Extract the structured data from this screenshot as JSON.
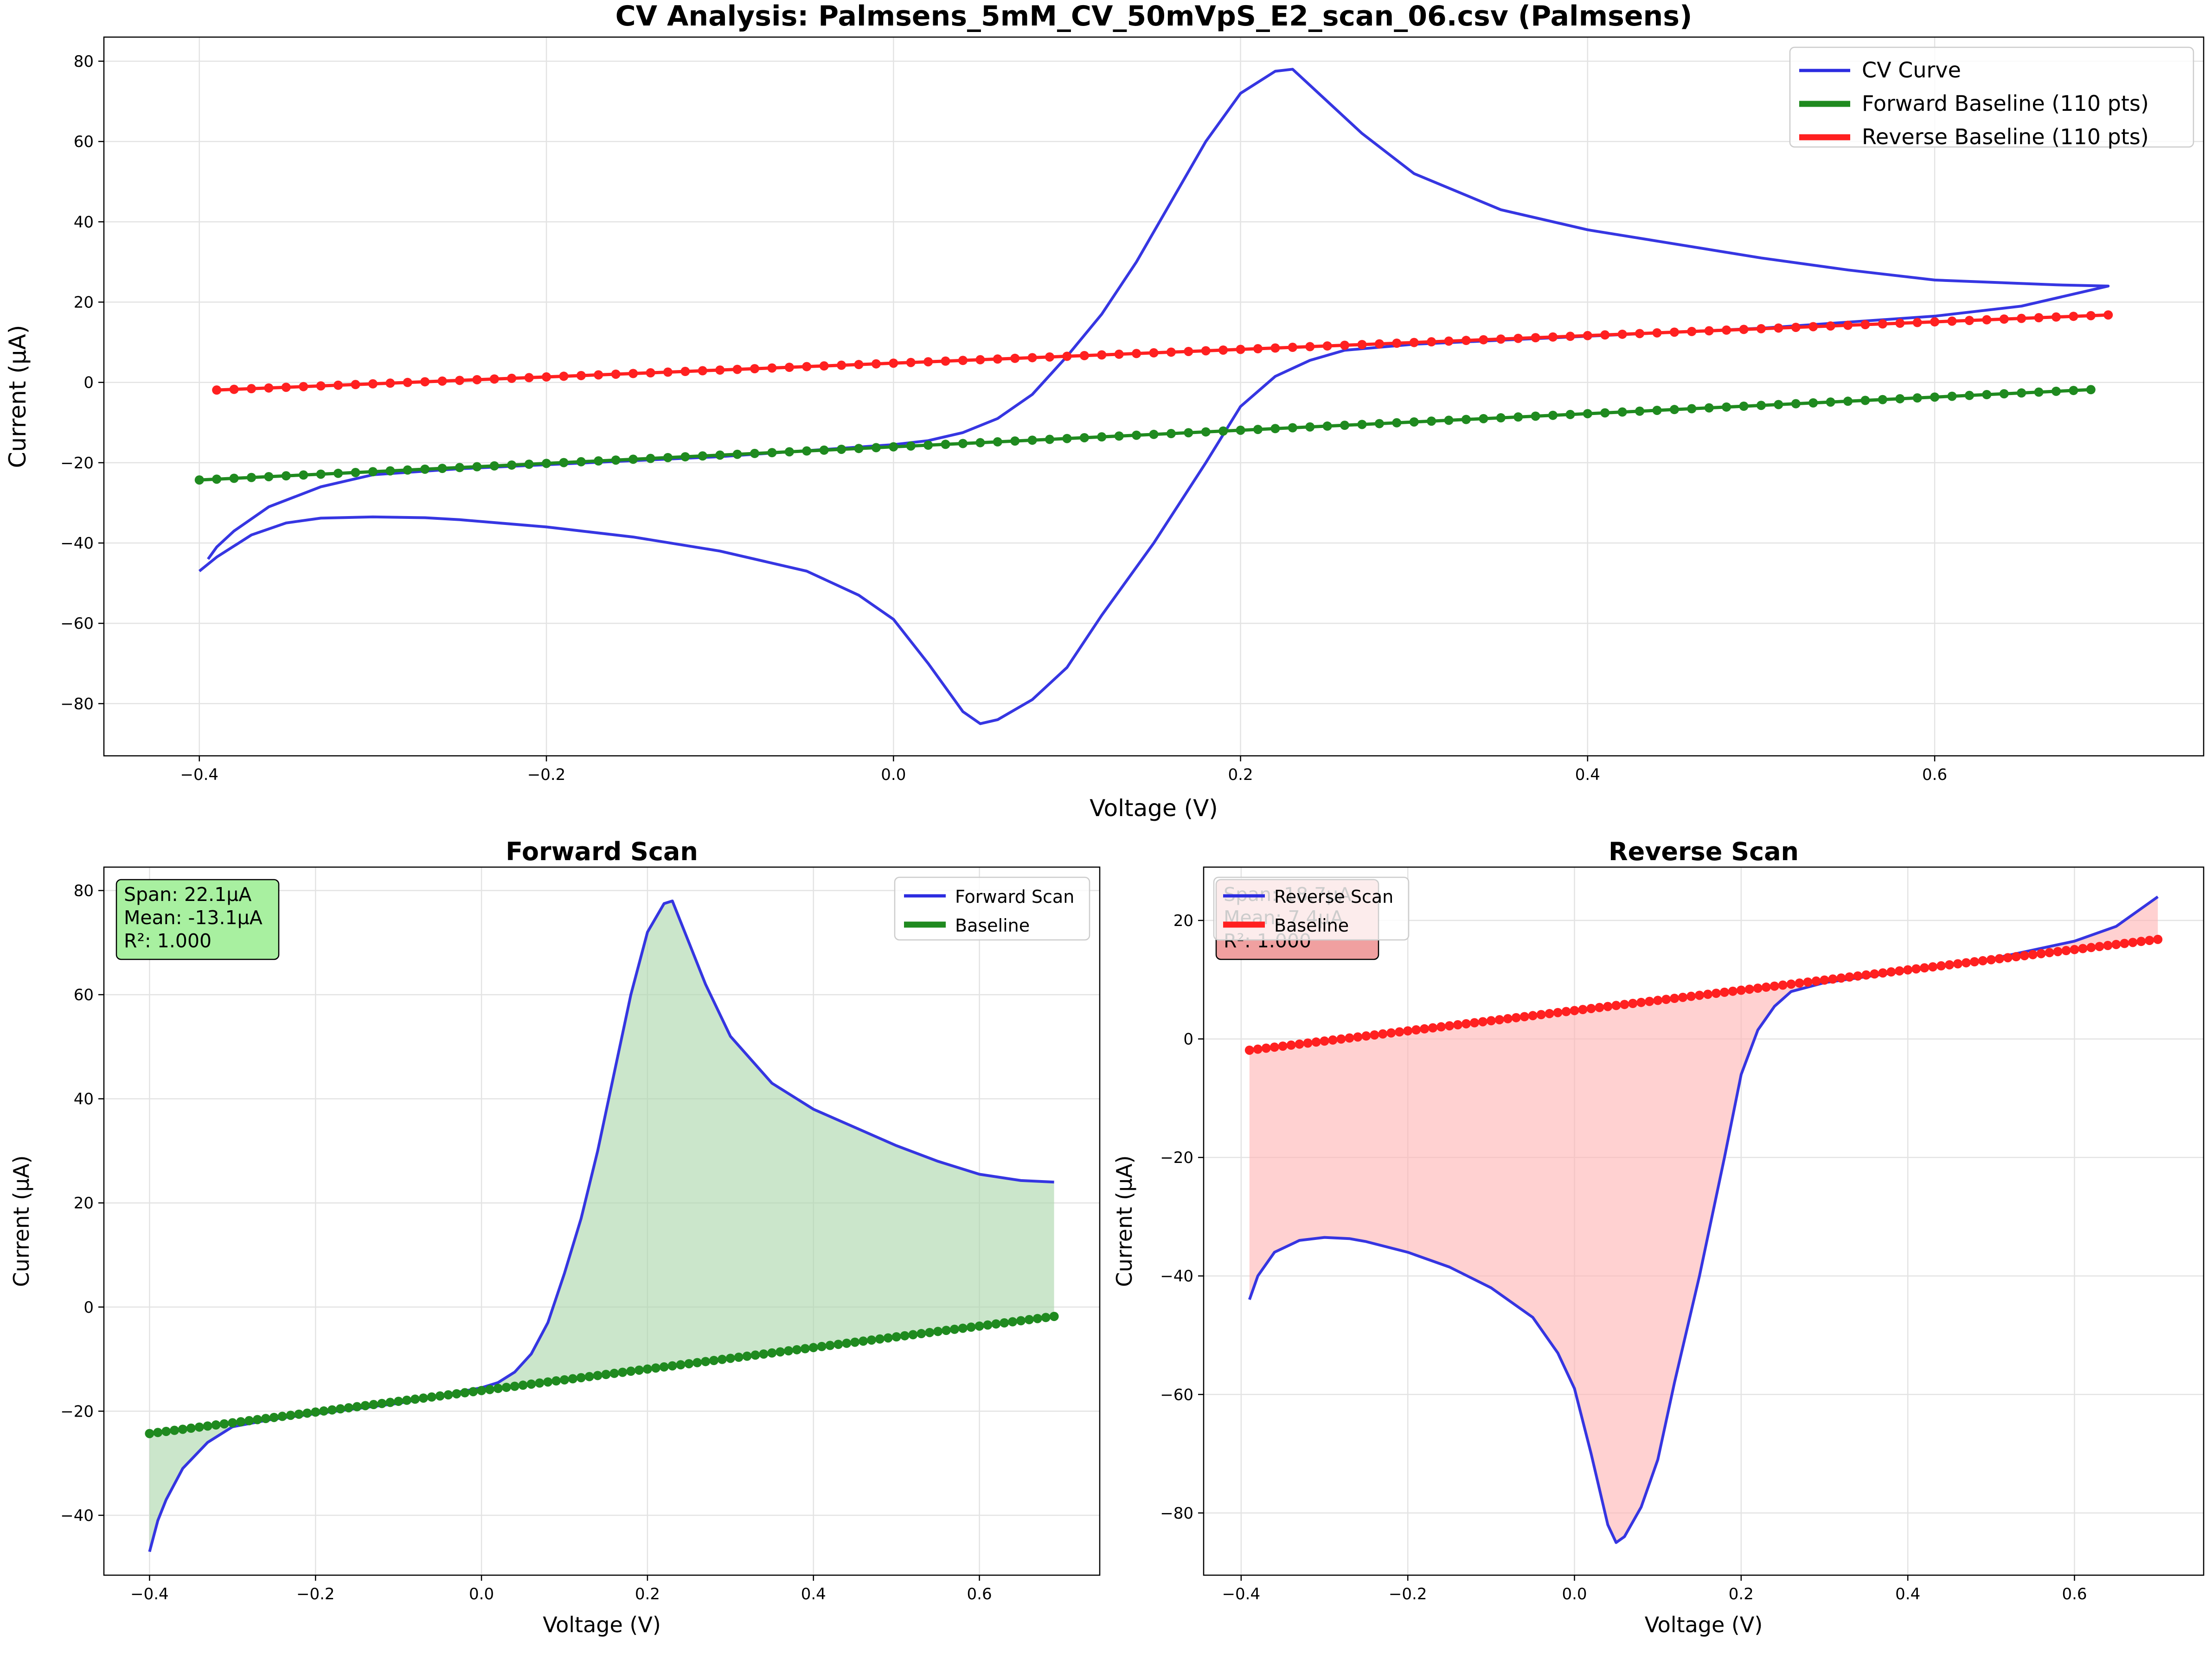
{
  "chart_data": [
    {
      "id": "top",
      "type": "line",
      "title": "CV Analysis: Palmsens_5mM_CV_50mVpS_E2_scan_06.csv (Palmsens)",
      "xlabel": "Voltage (V)",
      "ylabel": "Current (µA)",
      "xlim": [
        -0.455,
        0.755
      ],
      "ylim": [
        -93,
        86
      ],
      "xticks": [
        -0.4,
        -0.2,
        0.0,
        0.2,
        0.4,
        0.6
      ],
      "yticks": [
        -80,
        -60,
        -40,
        -20,
        0,
        20,
        40,
        60,
        80
      ],
      "grid": true,
      "legend_position": "top-right",
      "series": [
        {
          "name": "CV Curve",
          "color": "#2b2be0",
          "style": "line",
          "points": [
            [
              -0.4,
              -47
            ],
            [
              -0.39,
              -43.5
            ],
            [
              -0.37,
              -38
            ],
            [
              -0.35,
              -35
            ],
            [
              -0.33,
              -33.8
            ],
            [
              -0.3,
              -33.5
            ],
            [
              -0.27,
              -33.7
            ],
            [
              -0.25,
              -34.2
            ],
            [
              -0.2,
              -36
            ],
            [
              -0.15,
              -38.5
            ],
            [
              -0.1,
              -42
            ],
            [
              -0.05,
              -47
            ],
            [
              -0.02,
              -53
            ],
            [
              0.0,
              -59
            ],
            [
              0.02,
              -70
            ],
            [
              0.04,
              -82
            ],
            [
              0.05,
              -85
            ],
            [
              0.06,
              -84
            ],
            [
              0.08,
              -79
            ],
            [
              0.1,
              -71
            ],
            [
              0.12,
              -58
            ],
            [
              0.15,
              -40
            ],
            [
              0.18,
              -20
            ],
            [
              0.2,
              -6
            ],
            [
              0.22,
              1.5
            ],
            [
              0.24,
              5.5
            ],
            [
              0.26,
              8
            ],
            [
              0.3,
              9.5
            ],
            [
              0.35,
              10.5
            ],
            [
              0.4,
              11.5
            ],
            [
              0.45,
              12.5
            ],
            [
              0.5,
              13.5
            ],
            [
              0.55,
              15
            ],
            [
              0.6,
              16.5
            ],
            [
              0.65,
              19
            ],
            [
              0.7,
              24
            ],
            [
              0.67,
              24.3
            ],
            [
              0.6,
              25.5
            ],
            [
              0.55,
              28
            ],
            [
              0.5,
              31
            ],
            [
              0.45,
              34.5
            ],
            [
              0.4,
              38
            ],
            [
              0.35,
              43
            ],
            [
              0.3,
              52
            ],
            [
              0.27,
              62
            ],
            [
              0.25,
              70
            ],
            [
              0.23,
              78
            ],
            [
              0.22,
              77.5
            ],
            [
              0.2,
              72
            ],
            [
              0.18,
              60
            ],
            [
              0.16,
              45
            ],
            [
              0.14,
              30
            ],
            [
              0.12,
              17
            ],
            [
              0.1,
              6.5
            ],
            [
              0.08,
              -3
            ],
            [
              0.06,
              -9
            ],
            [
              0.04,
              -12.5
            ],
            [
              0.02,
              -14.5
            ],
            [
              0.0,
              -15.5
            ],
            [
              -0.05,
              -17
            ],
            [
              -0.1,
              -18.5
            ],
            [
              -0.15,
              -19.5
            ],
            [
              -0.2,
              -20.5
            ],
            [
              -0.25,
              -21.5
            ],
            [
              -0.3,
              -23
            ],
            [
              -0.33,
              -26
            ],
            [
              -0.36,
              -31
            ],
            [
              -0.38,
              -37
            ],
            [
              -0.39,
              -41
            ],
            [
              -0.395,
              -44
            ]
          ]
        },
        {
          "name": "Forward Baseline (110 pts)",
          "color": "#1f8a1f",
          "style": "dotted-line",
          "count": 110,
          "x_range": [
            -0.4,
            0.69
          ],
          "y_range": [
            -24.3,
            -1.8
          ]
        },
        {
          "name": "Reverse Baseline (110 pts)",
          "color": "#ff2020",
          "style": "dotted-line",
          "count": 110,
          "x_range": [
            -0.39,
            0.7
          ],
          "y_range": [
            -1.9,
            16.8
          ]
        }
      ]
    },
    {
      "id": "forward",
      "type": "line",
      "title": "Forward Scan",
      "xlabel": "Voltage (V)",
      "ylabel": "Current (µA)",
      "xlim": [
        -0.455,
        0.745
      ],
      "ylim": [
        -51.5,
        84.5
      ],
      "xticks": [
        -0.4,
        -0.2,
        0.0,
        0.2,
        0.4,
        0.6
      ],
      "yticks": [
        -40,
        -20,
        0,
        20,
        40,
        60,
        80
      ],
      "grid": true,
      "legend_position": "top-right",
      "fill_color": "#a9d6a9",
      "stats_box": {
        "lines": [
          "Span: 22.1µA",
          "Mean: -13.1µA",
          "R²: 1.000"
        ],
        "bg": "#a8f0a0"
      },
      "series": [
        {
          "name": "Forward Scan",
          "color": "#2b2be0",
          "style": "line",
          "points": [
            [
              -0.4,
              -47
            ],
            [
              -0.39,
              -41
            ],
            [
              -0.38,
              -37
            ],
            [
              -0.36,
              -31
            ],
            [
              -0.33,
              -26
            ],
            [
              -0.3,
              -23
            ],
            [
              -0.25,
              -21.5
            ],
            [
              -0.2,
              -20.5
            ],
            [
              -0.15,
              -19.5
            ],
            [
              -0.1,
              -18.5
            ],
            [
              -0.05,
              -17
            ],
            [
              0.0,
              -15.5
            ],
            [
              0.02,
              -14.5
            ],
            [
              0.04,
              -12.5
            ],
            [
              0.06,
              -9
            ],
            [
              0.08,
              -3
            ],
            [
              0.1,
              6.5
            ],
            [
              0.12,
              17
            ],
            [
              0.14,
              30
            ],
            [
              0.16,
              45
            ],
            [
              0.18,
              60
            ],
            [
              0.2,
              72
            ],
            [
              0.22,
              77.5
            ],
            [
              0.23,
              78
            ],
            [
              0.25,
              70
            ],
            [
              0.27,
              62
            ],
            [
              0.3,
              52
            ],
            [
              0.35,
              43
            ],
            [
              0.4,
              38
            ],
            [
              0.45,
              34.5
            ],
            [
              0.5,
              31
            ],
            [
              0.55,
              28
            ],
            [
              0.6,
              25.5
            ],
            [
              0.65,
              24.3
            ],
            [
              0.69,
              24
            ]
          ]
        },
        {
          "name": "Baseline",
          "color": "#1f8a1f",
          "style": "dotted-line",
          "count": 110,
          "x_range": [
            -0.4,
            0.69
          ],
          "y_range": [
            -24.3,
            -1.8
          ]
        }
      ]
    },
    {
      "id": "reverse",
      "type": "line",
      "title": "Reverse Scan",
      "xlabel": "Voltage (V)",
      "ylabel": "Current (µA)",
      "xlim": [
        -0.445,
        0.755
      ],
      "ylim": [
        -90.5,
        29
      ],
      "xticks": [
        -0.4,
        -0.2,
        0.0,
        0.2,
        0.4,
        0.6
      ],
      "yticks": [
        -80,
        -60,
        -40,
        -20,
        0,
        20
      ],
      "grid": true,
      "legend_position": "top-left",
      "fill_color": "#ffb3b3",
      "stats_box": {
        "lines": [
          "Span: 18.7µA",
          "Mean: 7.4µA",
          "R²: 1.000"
        ],
        "bg": "#f0a0a0"
      },
      "series": [
        {
          "name": "Reverse Scan",
          "color": "#2b2be0",
          "style": "line",
          "points": [
            [
              -0.39,
              -44
            ],
            [
              -0.38,
              -40
            ],
            [
              -0.36,
              -36
            ],
            [
              -0.33,
              -34
            ],
            [
              -0.3,
              -33.5
            ],
            [
              -0.27,
              -33.7
            ],
            [
              -0.25,
              -34.2
            ],
            [
              -0.2,
              -36
            ],
            [
              -0.15,
              -38.5
            ],
            [
              -0.1,
              -42
            ],
            [
              -0.05,
              -47
            ],
            [
              -0.02,
              -53
            ],
            [
              0.0,
              -59
            ],
            [
              0.02,
              -70
            ],
            [
              0.04,
              -82
            ],
            [
              0.05,
              -85
            ],
            [
              0.06,
              -84
            ],
            [
              0.08,
              -79
            ],
            [
              0.1,
              -71
            ],
            [
              0.12,
              -58
            ],
            [
              0.15,
              -40
            ],
            [
              0.18,
              -20
            ],
            [
              0.2,
              -6
            ],
            [
              0.22,
              1.5
            ],
            [
              0.24,
              5.5
            ],
            [
              0.26,
              8
            ],
            [
              0.3,
              9.5
            ],
            [
              0.35,
              10.5
            ],
            [
              0.4,
              11.5
            ],
            [
              0.45,
              12.5
            ],
            [
              0.5,
              13.5
            ],
            [
              0.55,
              15
            ],
            [
              0.6,
              16.5
            ],
            [
              0.65,
              19
            ],
            [
              0.7,
              24
            ]
          ]
        },
        {
          "name": "Baseline",
          "color": "#ff2020",
          "style": "dotted-line",
          "count": 110,
          "x_range": [
            -0.39,
            0.7
          ],
          "y_range": [
            -1.9,
            16.8
          ]
        }
      ]
    }
  ]
}
